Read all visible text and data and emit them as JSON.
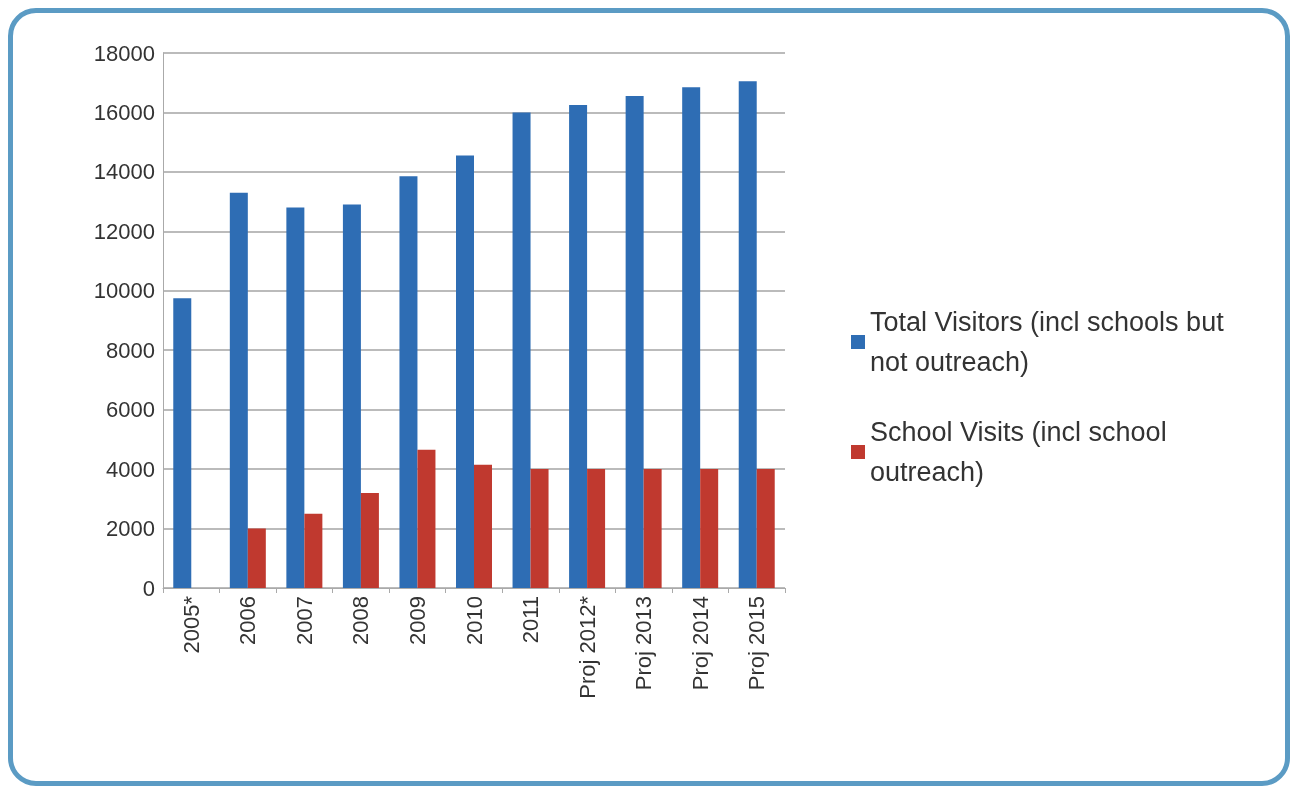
{
  "chart_data": {
    "type": "bar",
    "categories": [
      "2005*",
      "2006",
      "2007",
      "2008",
      "2009",
      "2010",
      "2011",
      "Proj 2012*",
      "Proj 2013",
      "Proj 2014",
      "Proj 2015"
    ],
    "series": [
      {
        "name": "Total Visitors (incl schools but not outreach)",
        "color": "#2e6db4",
        "values": [
          9750,
          13300,
          12800,
          12900,
          13850,
          14550,
          16000,
          16250,
          16550,
          16850,
          17050
        ]
      },
      {
        "name": "School Visits (incl school outreach)",
        "color": "#c0392f",
        "values": [
          null,
          2000,
          2500,
          3200,
          4650,
          4150,
          4000,
          4000,
          4000,
          4000,
          4000
        ]
      }
    ],
    "ylim": [
      0,
      18000
    ],
    "yticks": [
      0,
      2000,
      4000,
      6000,
      8000,
      10000,
      12000,
      14000,
      16000,
      18000
    ],
    "grid": "y",
    "legend": "right"
  }
}
